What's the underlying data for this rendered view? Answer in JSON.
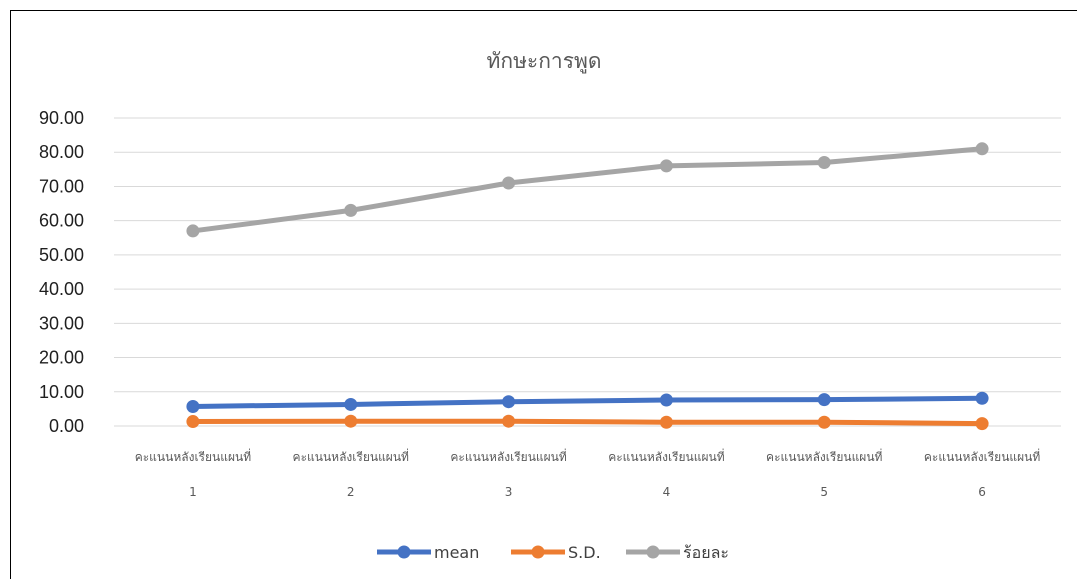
{
  "chart_data": {
    "type": "line",
    "title": "ทักษะการพูด",
    "categories": [
      [
        "คะแนนหลังเรียนแผนที่",
        "1"
      ],
      [
        "คะแนนหลังเรียนแผนที่",
        "2"
      ],
      [
        "คะแนนหลังเรียนแผนที่",
        "3"
      ],
      [
        "คะแนนหลังเรียนแผนที่",
        "4"
      ],
      [
        "คะแนนหลังเรียนแผนที่",
        "5"
      ],
      [
        "คะแนนหลังเรียนแผนที่",
        "6"
      ]
    ],
    "ylim": [
      0,
      90
    ],
    "yticks": [
      "0.00",
      "10.00",
      "20.00",
      "30.00",
      "40.00",
      "50.00",
      "60.00",
      "70.00",
      "80.00",
      "90.00"
    ],
    "grid": true,
    "legend_position": "bottom",
    "series": [
      {
        "name": "mean",
        "color": "#4472C4",
        "values": [
          5.7,
          6.3,
          7.1,
          7.6,
          7.7,
          8.1
        ]
      },
      {
        "name": "S.D.",
        "color": "#ED7D31",
        "values": [
          1.3,
          1.4,
          1.4,
          1.1,
          1.1,
          0.7
        ]
      },
      {
        "name": "ร้อยละ",
        "color": "#A5A5A5",
        "values": [
          57,
          63,
          71,
          76,
          77,
          81
        ]
      }
    ]
  }
}
